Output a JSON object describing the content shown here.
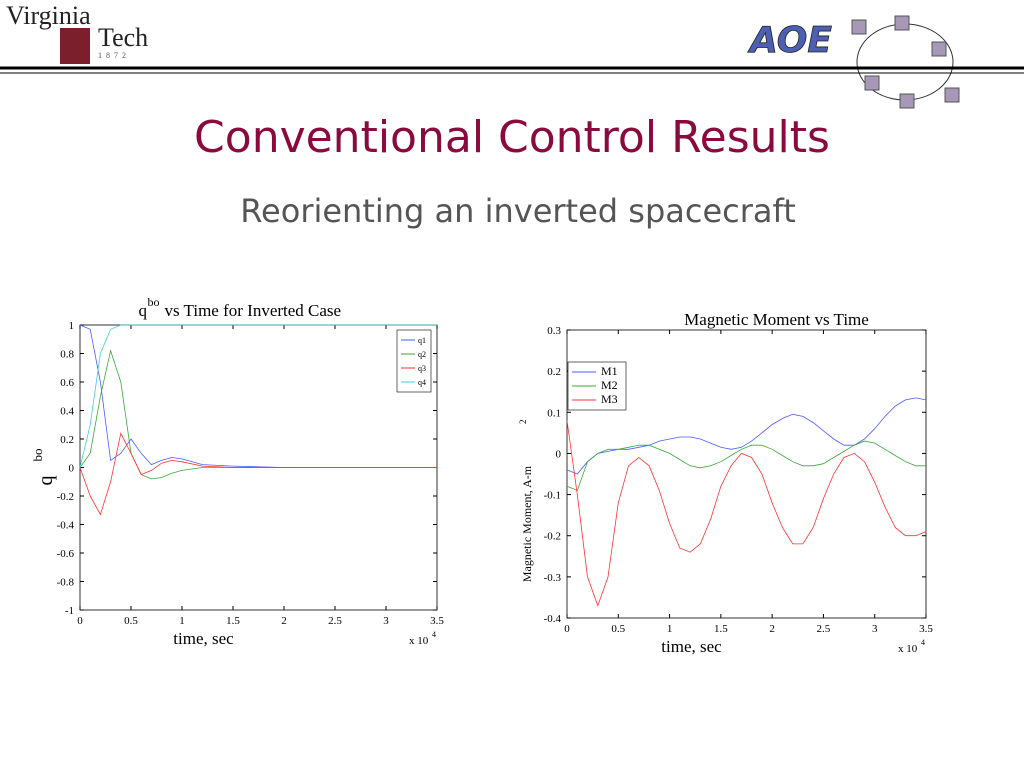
{
  "header": {
    "logo_line_1": "Virginia",
    "logo_line_2": "Tech",
    "logo_year": "1872",
    "aoe": "AOE"
  },
  "slide": {
    "title": "Conventional Control Results",
    "subtitle": "Reorienting an inverted spacecraft"
  },
  "chart_data": [
    {
      "type": "line",
      "title_symbol": "q",
      "title_superscript": "bo",
      "title": "vs Time for Inverted Case",
      "ylabel": "q",
      "ylabel_superscript": "bo",
      "xlabel": "time, sec",
      "x_multiplier": "x 10",
      "x_multiplier_exponent": "4",
      "legend": "upper right",
      "xlim": [
        0,
        3.5
      ],
      "ylim": [
        -1,
        1
      ],
      "xticks": [
        0,
        0.5,
        1,
        1.5,
        2,
        2.5,
        3,
        3.5
      ],
      "yticks": [
        -1,
        -0.8,
        -0.6,
        -0.4,
        -0.2,
        0,
        0.2,
        0.4,
        0.6,
        0.8,
        1
      ],
      "x": [
        0,
        0.1,
        0.2,
        0.3,
        0.4,
        0.5,
        0.6,
        0.7,
        0.8,
        0.9,
        1.0,
        1.2,
        1.5,
        2,
        2.5,
        3,
        3.5
      ],
      "series": [
        {
          "name": "q1",
          "color": "#4a5cff",
          "values": [
            1,
            0.97,
            0.6,
            0.05,
            0.1,
            0.2,
            0.1,
            0.02,
            0.05,
            0.07,
            0.06,
            0.02,
            0.01,
            0,
            0,
            0,
            0
          ]
        },
        {
          "name": "q2",
          "color": "#3aa83a",
          "values": [
            0,
            0.1,
            0.5,
            0.82,
            0.6,
            0.1,
            -0.05,
            -0.08,
            -0.07,
            -0.04,
            -0.02,
            0,
            0,
            0,
            0,
            0,
            0
          ]
        },
        {
          "name": "q3",
          "color": "#ff3030",
          "values": [
            0,
            -0.2,
            -0.33,
            -0.1,
            0.24,
            0.1,
            -0.05,
            -0.02,
            0.03,
            0.05,
            0.04,
            0.01,
            0,
            0,
            0,
            0,
            0
          ]
        },
        {
          "name": "q4",
          "color": "#40d0d0",
          "values": [
            0,
            0.3,
            0.8,
            0.97,
            1,
            1,
            1,
            1,
            1,
            1,
            1,
            1,
            1,
            1,
            1,
            1,
            1
          ]
        }
      ]
    },
    {
      "type": "line",
      "title": "Magnetic Moment vs Time",
      "ylabel": "Magnetic Moment, A-m",
      "ylabel_superscript": "2",
      "xlabel": "time, sec",
      "x_multiplier": "x 10",
      "x_multiplier_exponent": "4",
      "legend": "upper left",
      "xlim": [
        0,
        3.5
      ],
      "ylim": [
        -0.4,
        0.3
      ],
      "xticks": [
        0,
        0.5,
        1,
        1.5,
        2,
        2.5,
        3,
        3.5
      ],
      "yticks": [
        -0.4,
        -0.3,
        -0.2,
        -0.1,
        0,
        0.1,
        0.2,
        0.3
      ],
      "x": [
        0,
        0.1,
        0.2,
        0.3,
        0.4,
        0.5,
        0.6,
        0.7,
        0.8,
        0.9,
        1.0,
        1.1,
        1.2,
        1.3,
        1.4,
        1.5,
        1.6,
        1.7,
        1.8,
        1.9,
        2.0,
        2.1,
        2.2,
        2.3,
        2.4,
        2.5,
        2.6,
        2.7,
        2.8,
        2.9,
        3.0,
        3.1,
        3.2,
        3.3,
        3.4,
        3.5
      ],
      "series": [
        {
          "name": "M1",
          "color": "#4a5cff",
          "values": [
            -0.04,
            -0.05,
            -0.02,
            0,
            0.005,
            0.01,
            0.01,
            0.015,
            0.02,
            0.03,
            0.035,
            0.04,
            0.04,
            0.035,
            0.025,
            0.015,
            0.01,
            0.015,
            0.03,
            0.05,
            0.07,
            0.085,
            0.095,
            0.09,
            0.075,
            0.055,
            0.035,
            0.02,
            0.02,
            0.035,
            0.06,
            0.09,
            0.115,
            0.13,
            0.135,
            0.13
          ]
        },
        {
          "name": "M2",
          "color": "#3aa83a",
          "values": [
            -0.08,
            -0.09,
            -0.02,
            0,
            0.01,
            0.01,
            0.015,
            0.02,
            0.02,
            0.01,
            0,
            -0.015,
            -0.03,
            -0.035,
            -0.03,
            -0.02,
            -0.005,
            0.01,
            0.02,
            0.02,
            0.01,
            -0.005,
            -0.02,
            -0.03,
            -0.03,
            -0.025,
            -0.01,
            0.005,
            0.02,
            0.03,
            0.025,
            0.01,
            -0.005,
            -0.02,
            -0.03,
            -0.03
          ]
        },
        {
          "name": "M3",
          "color": "#ff3030",
          "values": [
            0.08,
            -0.1,
            -0.3,
            -0.37,
            -0.3,
            -0.12,
            -0.03,
            -0.01,
            -0.03,
            -0.09,
            -0.17,
            -0.23,
            -0.24,
            -0.22,
            -0.16,
            -0.08,
            -0.03,
            0,
            -0.01,
            -0.05,
            -0.12,
            -0.18,
            -0.22,
            -0.22,
            -0.18,
            -0.11,
            -0.05,
            -0.01,
            0,
            -0.02,
            -0.07,
            -0.13,
            -0.18,
            -0.2,
            -0.2,
            -0.19
          ]
        }
      ]
    }
  ]
}
